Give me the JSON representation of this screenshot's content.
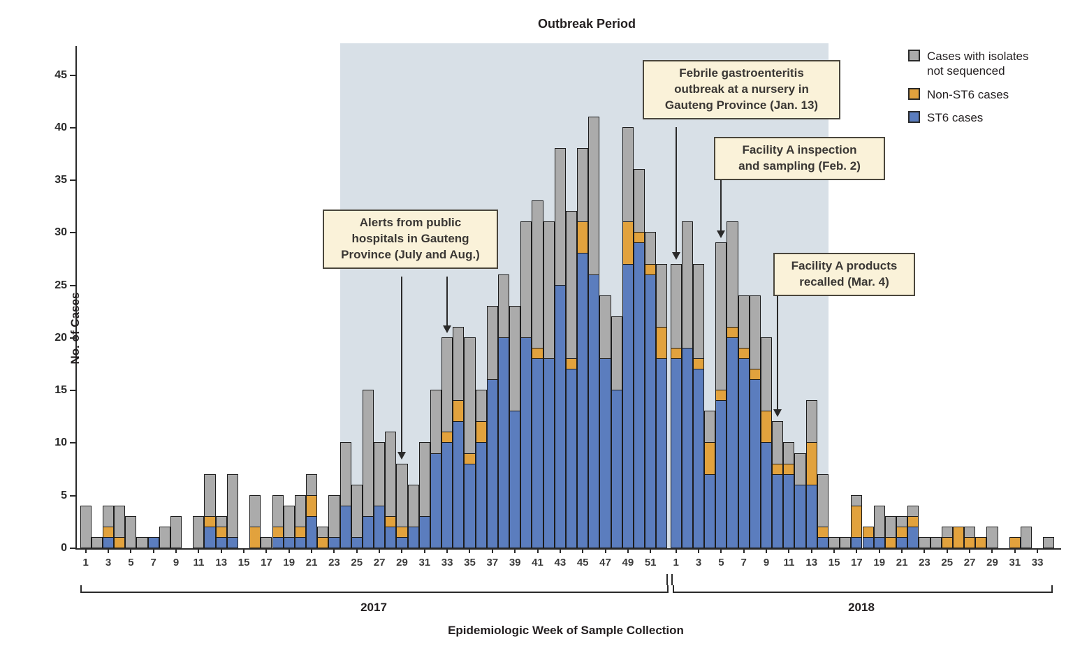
{
  "title": "Outbreak Period",
  "y_axis": {
    "label": "No. of Cases",
    "ticks": [
      0,
      5,
      10,
      15,
      20,
      25,
      30,
      35,
      40,
      45
    ]
  },
  "x_axis": {
    "label": "Epidemiologic Week of Sample Collection",
    "year_left": "2017",
    "year_right": "2018"
  },
  "legend": {
    "items": [
      {
        "name": "not-sequenced",
        "label": "Cases with isolates\nnot sequenced",
        "color": "#ababab"
      },
      {
        "name": "non-st6",
        "label": "Non-ST6 cases",
        "color": "#e2a23d"
      },
      {
        "name": "st6",
        "label": "ST6 cases",
        "color": "#5b7dbe"
      }
    ]
  },
  "annotations": [
    {
      "id": "alerts",
      "text": "Alerts from public\nhospitals in Gauteng\nProvince (July and Aug.)",
      "targets": [
        {
          "year": 2017,
          "week": 29
        },
        {
          "year": 2017,
          "week": 33
        }
      ]
    },
    {
      "id": "febrile",
      "text": "Febrile gastroenteritis\noutbreak at a nursery in\nGauteng Province (Jan. 13)",
      "targets": [
        {
          "year": 2018,
          "week": 1
        }
      ]
    },
    {
      "id": "inspection",
      "text": "Facility A inspection\nand sampling (Feb. 2)",
      "targets": [
        {
          "year": 2018,
          "week": 5
        }
      ]
    },
    {
      "id": "recalled",
      "text": "Facility A products\nrecalled (Mar. 4)",
      "targets": [
        {
          "year": 2018,
          "week": 10
        }
      ]
    }
  ],
  "colors": {
    "st6": "#5b7dbe",
    "non_st6": "#e2a23d",
    "not_sequenced": "#ababab",
    "bar_border": "#1c1c1c",
    "outbreak_shading": "#d8e0e7",
    "annotation_bg": "#faf2d9",
    "annotation_border": "#4a463c",
    "axis": "#2a2a2a"
  },
  "chart_data": {
    "type": "bar",
    "stacked": true,
    "title": "Outbreak Period",
    "xlabel": "Epidemiologic Week of Sample Collection",
    "ylabel": "No. of Cases",
    "ylim": [
      0,
      48
    ],
    "grid": false,
    "legend_position": "top-right",
    "series_order": [
      "week",
      "st6_cases",
      "non_st6_cases",
      "isolates_not_sequenced"
    ],
    "outbreak_period": {
      "from": {
        "year": 2017,
        "week": 23.5
      },
      "to": {
        "year": 2018,
        "week": 14.5
      }
    },
    "weeks_2017": [
      [
        1,
        0,
        0,
        4
      ],
      [
        2,
        0,
        0,
        1
      ],
      [
        3,
        1,
        1,
        2
      ],
      [
        4,
        0,
        1,
        3
      ],
      [
        5,
        0,
        0,
        3
      ],
      [
        6,
        0,
        0,
        1
      ],
      [
        7,
        1,
        0,
        0
      ],
      [
        8,
        0,
        0,
        2
      ],
      [
        9,
        0,
        0,
        3
      ],
      [
        10,
        0,
        0,
        0
      ],
      [
        11,
        0,
        0,
        3
      ],
      [
        12,
        2,
        1,
        4
      ],
      [
        13,
        1,
        1,
        1
      ],
      [
        14,
        1,
        0,
        6
      ],
      [
        15,
        0,
        0,
        0
      ],
      [
        16,
        0,
        2,
        3
      ],
      [
        17,
        0,
        0,
        1
      ],
      [
        18,
        1,
        1,
        3
      ],
      [
        19,
        1,
        0,
        3
      ],
      [
        20,
        1,
        1,
        3
      ],
      [
        21,
        3,
        2,
        2
      ],
      [
        22,
        0,
        1,
        1
      ],
      [
        23,
        1,
        0,
        4
      ],
      [
        24,
        4,
        0,
        6
      ],
      [
        25,
        1,
        0,
        5
      ],
      [
        26,
        3,
        0,
        12
      ],
      [
        27,
        4,
        0,
        6
      ],
      [
        28,
        2,
        1,
        8
      ],
      [
        29,
        1,
        1,
        6
      ],
      [
        30,
        2,
        0,
        4
      ],
      [
        31,
        3,
        0,
        7
      ],
      [
        32,
        9,
        0,
        6
      ],
      [
        33,
        10,
        1,
        9
      ],
      [
        34,
        12,
        2,
        7
      ],
      [
        35,
        8,
        1,
        11
      ],
      [
        36,
        10,
        2,
        3
      ],
      [
        37,
        16,
        0,
        7
      ],
      [
        38,
        20,
        0,
        6
      ],
      [
        39,
        13,
        0,
        10
      ],
      [
        40,
        20,
        0,
        11
      ],
      [
        41,
        18,
        1,
        14
      ],
      [
        42,
        18,
        0,
        13
      ],
      [
        43,
        25,
        0,
        13
      ],
      [
        44,
        17,
        1,
        14
      ],
      [
        45,
        28,
        3,
        7
      ],
      [
        46,
        26,
        0,
        15
      ],
      [
        47,
        18,
        0,
        6
      ],
      [
        48,
        15,
        0,
        7
      ],
      [
        49,
        27,
        4,
        9
      ],
      [
        50,
        29,
        1,
        6
      ],
      [
        51,
        26,
        1,
        3
      ],
      [
        52,
        18,
        3,
        6
      ]
    ],
    "weeks_2018": [
      [
        1,
        18,
        1,
        8
      ],
      [
        2,
        19,
        0,
        12
      ],
      [
        3,
        17,
        1,
        9
      ],
      [
        4,
        7,
        3,
        3
      ],
      [
        5,
        14,
        1,
        14
      ],
      [
        6,
        20,
        1,
        10
      ],
      [
        7,
        18,
        1,
        5
      ],
      [
        8,
        16,
        1,
        7
      ],
      [
        9,
        10,
        3,
        7
      ],
      [
        10,
        7,
        1,
        4
      ],
      [
        11,
        7,
        1,
        2
      ],
      [
        12,
        6,
        0,
        3
      ],
      [
        13,
        6,
        4,
        4
      ],
      [
        14,
        1,
        1,
        5
      ],
      [
        15,
        0,
        0,
        1
      ],
      [
        16,
        0,
        0,
        1
      ],
      [
        17,
        1,
        3,
        1
      ],
      [
        18,
        1,
        1,
        0
      ],
      [
        19,
        1,
        0,
        3
      ],
      [
        20,
        0,
        1,
        2
      ],
      [
        21,
        1,
        1,
        1
      ],
      [
        22,
        2,
        1,
        1
      ],
      [
        23,
        0,
        0,
        1
      ],
      [
        24,
        0,
        0,
        1
      ],
      [
        25,
        0,
        1,
        1
      ],
      [
        26,
        0,
        2,
        0
      ],
      [
        27,
        0,
        1,
        1
      ],
      [
        28,
        0,
        1,
        0
      ],
      [
        29,
        0,
        0,
        2
      ],
      [
        30,
        0,
        0,
        0
      ],
      [
        31,
        0,
        1,
        0
      ],
      [
        32,
        0,
        0,
        2
      ],
      [
        33,
        0,
        0,
        0
      ],
      [
        34,
        0,
        0,
        1
      ]
    ],
    "x_tick_labels_2017": [
      1,
      3,
      5,
      7,
      9,
      11,
      13,
      15,
      17,
      19,
      21,
      23,
      25,
      27,
      29,
      31,
      33,
      35,
      37,
      39,
      41,
      43,
      45,
      47,
      49,
      51
    ],
    "x_tick_labels_2018": [
      1,
      3,
      5,
      7,
      9,
      11,
      13,
      15,
      17,
      19,
      21,
      23,
      25,
      27,
      29,
      31,
      33
    ]
  }
}
